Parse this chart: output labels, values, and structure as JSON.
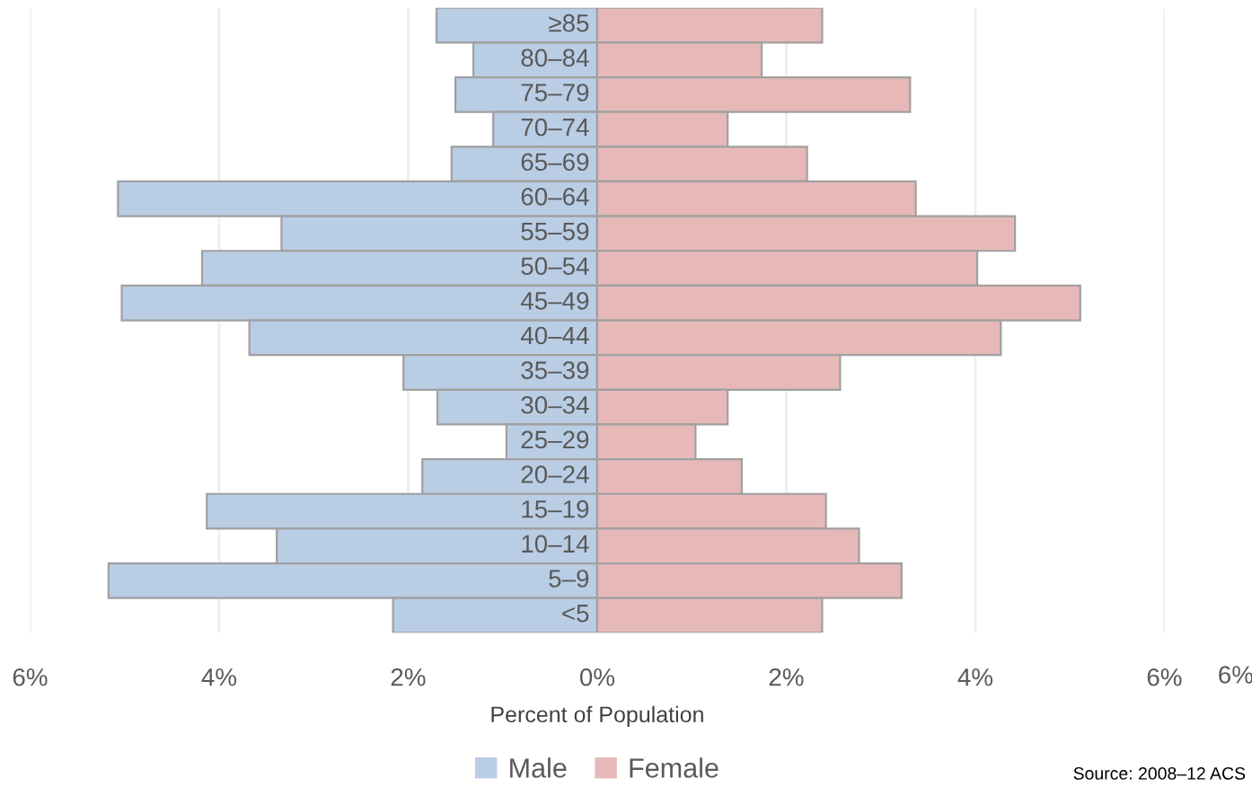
{
  "chart_data": {
    "type": "bar",
    "orientation": "horizontal",
    "xlabel": "Percent of Population",
    "categories": [
      "≥85",
      "80–84",
      "75–79",
      "70–74",
      "65–69",
      "60–64",
      "55–59",
      "50–54",
      "45–49",
      "40–44",
      "35–39",
      "30–34",
      "25–29",
      "20–24",
      "15–19",
      "10–14",
      "5–9",
      "<5"
    ],
    "series": [
      {
        "name": "Male",
        "color": "#b9cde5",
        "values": [
          -1.7,
          -1.31,
          -1.5,
          -1.1,
          -1.54,
          -5.07,
          -3.34,
          -4.18,
          -5.03,
          -3.68,
          -2.05,
          -1.69,
          -0.96,
          -1.85,
          -4.13,
          -3.39,
          -5.17,
          -2.16
        ]
      },
      {
        "name": "Female",
        "color": "#e6b9b8",
        "values": [
          2.38,
          1.74,
          3.31,
          1.38,
          2.22,
          3.37,
          4.42,
          4.02,
          5.11,
          4.27,
          2.57,
          1.38,
          1.04,
          1.53,
          2.42,
          2.77,
          3.22,
          2.38
        ]
      }
    ],
    "xlim": [
      -6,
      6
    ],
    "xticks": [
      {
        "value": -6,
        "label": "6%"
      },
      {
        "value": -4,
        "label": "4%"
      },
      {
        "value": -2,
        "label": "2%"
      },
      {
        "value": 0,
        "label": "0%"
      },
      {
        "value": 2,
        "label": "2%"
      },
      {
        "value": 4,
        "label": "4%"
      },
      {
        "value": 6,
        "label": "6%"
      }
    ],
    "grid": "x",
    "legend": "bottom",
    "stacked": true,
    "annotations": [
      "6%",
      "Source: 2008–12 ACS"
    ]
  }
}
